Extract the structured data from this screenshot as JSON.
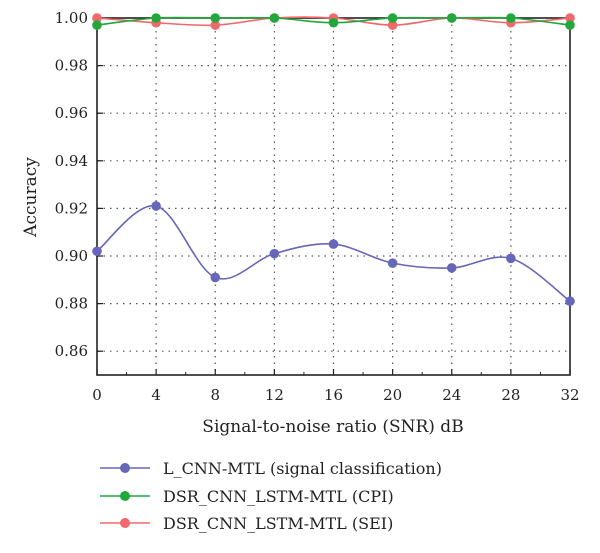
{
  "chart_data": {
    "type": "line",
    "xlabel": "Signal-to-noise ratio (SNR) dB",
    "ylabel": "Accuracy",
    "x": [
      0,
      4,
      8,
      12,
      16,
      20,
      24,
      28,
      32
    ],
    "xlim": [
      0,
      32
    ],
    "ylim": [
      0.85,
      1.0
    ],
    "x_ticks": [
      "0",
      "4",
      "8",
      "12",
      "16",
      "20",
      "24",
      "28",
      "32"
    ],
    "y_ticks": [
      "0.86",
      "0.88",
      "0.90",
      "0.92",
      "0.94",
      "0.96",
      "0.98",
      "1.00"
    ],
    "grid": "dotted",
    "legend_position": "bottom",
    "series": [
      {
        "name": "L_CNN-MTL (signal classification)",
        "color": "#6666bb",
        "values": [
          0.902,
          0.921,
          0.891,
          0.901,
          0.905,
          0.897,
          0.895,
          0.899,
          0.881
        ]
      },
      {
        "name": "DSR_CNN_LSTM-MTL (CPI)",
        "color": "#22a83a",
        "values": [
          0.997,
          1.0,
          1.0,
          1.0,
          0.998,
          1.0,
          1.0,
          1.0,
          0.997
        ]
      },
      {
        "name": "DSR_CNN_LSTM-MTL (SEI)",
        "color": "#f0686a",
        "values": [
          1.0,
          0.998,
          0.997,
          1.0,
          1.0,
          0.997,
          1.0,
          0.998,
          1.0
        ]
      }
    ]
  }
}
